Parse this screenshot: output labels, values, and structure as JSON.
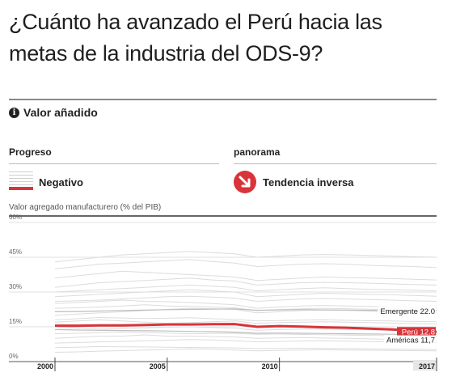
{
  "title": "¿Cuánto ha avanzado el Perú hacia las metas de la industria del ODS-9?",
  "section": {
    "icon": "info-icon",
    "label": "Valor añadido"
  },
  "columns": {
    "progress": {
      "label": "Progreso",
      "value": "Negativo"
    },
    "overview": {
      "label": "panorama",
      "value": "Tendencia inversa",
      "icon": "trend-down-icon"
    }
  },
  "colors": {
    "highlight": "#d8343a",
    "background_lines": "#dcdcdc",
    "text": "#222222"
  },
  "chart_data": {
    "type": "line",
    "ylabel": "Valor agregado manufacturero (% del PIB)",
    "ylim": [
      0,
      60
    ],
    "yticks": [
      0,
      15,
      30,
      45,
      60
    ],
    "ytick_labels": [
      "0%",
      "15%",
      "30%",
      "45%",
      "60%"
    ],
    "x": [
      2000,
      2001,
      2002,
      2003,
      2004,
      2005,
      2006,
      2007,
      2008,
      2009,
      2010,
      2011,
      2012,
      2013,
      2014,
      2015,
      2016,
      2017
    ],
    "xticks": [
      2000,
      2005,
      2010,
      2017
    ],
    "grid": true,
    "series": [
      {
        "name": "Perú",
        "highlight": true,
        "values": [
          15.5,
          15.5,
          15.6,
          15.6,
          15.8,
          16.0,
          16.0,
          16.1,
          16.2,
          15.0,
          15.3,
          15.1,
          14.8,
          14.6,
          14.2,
          13.9,
          13.3,
          12.8
        ],
        "end_label": "Perú",
        "end_value": "12.8"
      },
      {
        "name": "Emergente",
        "values": [
          21.5,
          21.6,
          21.8,
          22.0,
          22.2,
          22.4,
          22.5,
          22.6,
          22.7,
          22.1,
          22.3,
          22.4,
          22.3,
          22.2,
          22.1,
          22.0,
          22.0,
          22.0
        ],
        "end_label": "Emergente",
        "end_value": "22.0"
      },
      {
        "name": "Américas",
        "values": [
          13.8,
          13.6,
          13.5,
          13.4,
          13.3,
          13.2,
          13.0,
          12.9,
          12.7,
          12.2,
          12.3,
          12.2,
          12.1,
          12.0,
          11.9,
          11.8,
          11.7,
          11.7
        ],
        "end_label": "Américas",
        "end_value": "11,7"
      }
    ],
    "background_series": [
      [
        10,
        10.5,
        11,
        11,
        11.5,
        11,
        11,
        10.8,
        10.6,
        10,
        10.2,
        10.4,
        10.1,
        10,
        9.8,
        9.6,
        9.4,
        9.3
      ],
      [
        12,
        12.2,
        12.5,
        12.7,
        12.5,
        12.3,
        12,
        12.1,
        12.2,
        11.8,
        11.9,
        11.7,
        11.6,
        11.4,
        11.3,
        11.2,
        11,
        11
      ],
      [
        18,
        18.5,
        19,
        18.8,
        18.6,
        18.7,
        18.9,
        18.5,
        18.2,
        17.5,
        17.7,
        17.9,
        18,
        17.8,
        17.6,
        17.5,
        17.3,
        17.2
      ],
      [
        20,
        20.5,
        21,
        21.5,
        22,
        22.5,
        23,
        22.8,
        22.5,
        21,
        21.5,
        22,
        22.3,
        22.1,
        21.8,
        21.5,
        21.3,
        21
      ],
      [
        25,
        25.5,
        26,
        26.5,
        26,
        25.8,
        25.5,
        25,
        24.5,
        23,
        23.5,
        24,
        24.2,
        24,
        23.8,
        23.5,
        23.2,
        23
      ],
      [
        28,
        28.5,
        29,
        29.5,
        30,
        30.5,
        31,
        30.5,
        30,
        28,
        28.5,
        29,
        29.5,
        29.2,
        29,
        28.8,
        28.5,
        28.2
      ],
      [
        32,
        33,
        34,
        34.5,
        35,
        35.5,
        36,
        35.2,
        34.8,
        33,
        33.5,
        34,
        34.2,
        34,
        33.8,
        33.5,
        33.2,
        33
      ],
      [
        36,
        37,
        38,
        39,
        38.5,
        38,
        37.5,
        37,
        36.5,
        35,
        35.5,
        36,
        36.5,
        36.2,
        36,
        35.8,
        35.5,
        35.2
      ],
      [
        40,
        41,
        42,
        42.5,
        43,
        43.5,
        44,
        43.2,
        42.5,
        41,
        41.5,
        42,
        42.2,
        42,
        41.5,
        41.2,
        41,
        40.5
      ],
      [
        43,
        44,
        45,
        46,
        46.5,
        47,
        47.5,
        47,
        46.5,
        45,
        45.5,
        46,
        46.2,
        46,
        45.8,
        45.5,
        45.2,
        45
      ],
      [
        8,
        8.2,
        8.5,
        8.7,
        9,
        9.2,
        9.5,
        9.3,
        9,
        8.5,
        8.7,
        8.9,
        9,
        8.8,
        8.6,
        8.5,
        8.3,
        8.2
      ],
      [
        6,
        6.2,
        6.5,
        6.4,
        6.3,
        6.2,
        6.1,
        6,
        5.9,
        5.6,
        5.7,
        5.8,
        5.7,
        5.6,
        5.5,
        5.4,
        5.3,
        5.2
      ],
      [
        15,
        14.5,
        14,
        14.2,
        14.5,
        14.8,
        15,
        14.7,
        14.4,
        13.5,
        13.8,
        14,
        14.1,
        13.9,
        13.7,
        13.5,
        13.3,
        13.1
      ],
      [
        23,
        23.2,
        23.5,
        24,
        24.5,
        24,
        23.8,
        23.5,
        23.2,
        22,
        22.4,
        22.8,
        23,
        22.8,
        22.6,
        22.4,
        22.2,
        22
      ],
      [
        30,
        30.5,
        31,
        31.5,
        32,
        32.5,
        33,
        32.5,
        32,
        30.5,
        31,
        31.5,
        31.8,
        31.5,
        31.2,
        31,
        30.8,
        30.5
      ],
      [
        4,
        4.2,
        4.5,
        4.7,
        5,
        5.2,
        5.5,
        5.3,
        5,
        4.6,
        4.8,
        5,
        5.1,
        5,
        4.9,
        4.8,
        4.7,
        4.6
      ],
      [
        17,
        17.5,
        18,
        17.5,
        17,
        16.5,
        16.8,
        17.2,
        17.5,
        16.5,
        16.8,
        17,
        17.2,
        17,
        16.8,
        16.6,
        16.4,
        16.2
      ],
      [
        26,
        26.2,
        26.5,
        27,
        27.5,
        28,
        28.2,
        27.8,
        27.4,
        26,
        26.5,
        27,
        27.2,
        27,
        26.8,
        26.5,
        26.2,
        26
      ]
    ]
  }
}
